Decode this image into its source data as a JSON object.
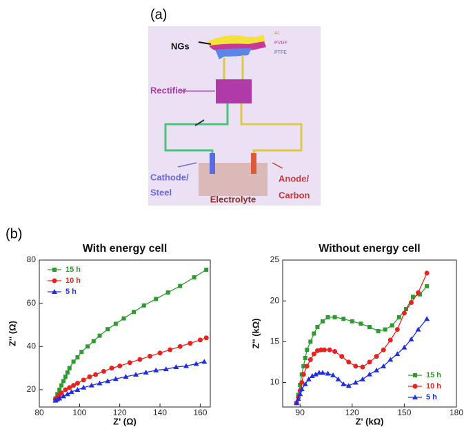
{
  "panel_labels": [
    "(a)",
    "(b)"
  ],
  "diagram": {
    "ngs": "NGs",
    "al": "Al",
    "pvdf": "PVDF",
    "ptfe": "PTFE",
    "rectifier": "Rectifier",
    "cathode": "Cathode/",
    "steel": "Steel",
    "anode": "Anode/",
    "carbon": "Carbon",
    "electrolyte": "Electrolyte"
  },
  "chart_data": [
    {
      "type": "line",
      "title": "With energy cell",
      "x_label": "Z' (Ω)",
      "y_label": "Z'' (Ω)",
      "xlim": [
        80,
        165
      ],
      "xticks": [
        80,
        100,
        120,
        140,
        160
      ],
      "ylim": [
        12,
        80
      ],
      "yticks": [
        20,
        40,
        60,
        80
      ],
      "legend": "upper left",
      "series": [
        {
          "name": "15 h",
          "color": "#2e9b2e",
          "marker": "square",
          "x": [
            88,
            89,
            90,
            91,
            92,
            93,
            94,
            95,
            97,
            99,
            101,
            104,
            107,
            110,
            114,
            118,
            122,
            127,
            132,
            138,
            144,
            150,
            157,
            163
          ],
          "values": [
            16,
            18,
            20,
            22,
            24,
            26,
            28,
            30,
            33,
            35,
            37.5,
            40,
            42.5,
            45,
            48,
            50.5,
            53,
            56,
            59,
            62,
            65,
            68,
            72,
            75.5
          ]
        },
        {
          "name": "10 h",
          "color": "#e8231f",
          "marker": "circle",
          "x": [
            88,
            89,
            90,
            91,
            93,
            95,
            97,
            99,
            102,
            105,
            108,
            112,
            116,
            120,
            125,
            130,
            135,
            140,
            145,
            150,
            155,
            160,
            163
          ],
          "values": [
            15.5,
            16.5,
            17.5,
            18.5,
            20,
            21,
            22,
            23,
            24.5,
            26,
            27,
            28.5,
            30,
            31,
            32.5,
            34,
            35.5,
            37,
            38.5,
            40,
            41.5,
            43,
            44
          ]
        },
        {
          "name": "5 h",
          "color": "#1f2fe0",
          "marker": "triangle",
          "x": [
            88,
            89,
            90,
            92,
            94,
            96,
            99,
            102,
            106,
            110,
            114,
            118,
            123,
            128,
            133,
            138,
            143,
            148,
            153,
            158,
            162
          ],
          "values": [
            15,
            15.5,
            16,
            17,
            18,
            19,
            20,
            21,
            22,
            23,
            24,
            25,
            26,
            27,
            28,
            29,
            29.5,
            30.5,
            31,
            32,
            33
          ]
        }
      ]
    },
    {
      "type": "line",
      "title": "Without energy cell",
      "x_label": "Z' (kΩ)",
      "y_label": "Z'' (kΩ)",
      "xlim": [
        80,
        180
      ],
      "xticks": [
        90,
        120,
        150,
        180
      ],
      "ylim": [
        7,
        25
      ],
      "yticks": [
        10,
        15,
        20,
        25
      ],
      "legend": "lower right",
      "series": [
        {
          "name": "15 h",
          "color": "#2e9b2e",
          "marker": "square",
          "x": [
            88,
            89,
            90,
            91,
            92,
            93,
            94,
            96,
            98,
            100,
            103,
            106,
            110,
            115,
            120,
            125,
            130,
            135,
            139,
            143,
            147,
            151,
            155,
            159,
            163
          ],
          "values": [
            7.5,
            8.5,
            9.7,
            11,
            12,
            13,
            14,
            15,
            16,
            16.8,
            17.5,
            18,
            18,
            17.8,
            17.5,
            17.2,
            16.8,
            16.3,
            16.5,
            17,
            18,
            19,
            20.5,
            20.8,
            21.8
          ]
        },
        {
          "name": "10 h",
          "color": "#e8231f",
          "marker": "circle",
          "x": [
            88,
            89,
            90,
            91,
            92,
            94,
            96,
            98,
            100,
            102,
            104,
            107,
            110,
            114,
            118,
            122,
            126,
            130,
            134,
            138,
            142,
            146,
            150,
            154,
            158,
            163
          ],
          "values": [
            7.5,
            8.2,
            9,
            10,
            11,
            12,
            12.8,
            13.5,
            13.9,
            14,
            14,
            14,
            13.8,
            13.2,
            12.5,
            12,
            11.9,
            12.5,
            13.2,
            14,
            15.2,
            16.5,
            18.5,
            19.8,
            21,
            23.4
          ]
        },
        {
          "name": "5 h",
          "color": "#1f2fe0",
          "marker": "triangle",
          "x": [
            88,
            89,
            90,
            91,
            93,
            95,
            97,
            99,
            101,
            103,
            106,
            109,
            112,
            115,
            118,
            122,
            126,
            130,
            134,
            138,
            142,
            146,
            150,
            154,
            158,
            163
          ],
          "values": [
            7.5,
            8,
            8.6,
            9.2,
            9.8,
            10.4,
            10.8,
            11,
            11.2,
            11.2,
            11.1,
            10.9,
            10.4,
            9.8,
            9.6,
            10,
            10.4,
            11,
            11.5,
            12,
            12.8,
            13.5,
            14.3,
            15.3,
            16.5,
            17.8
          ]
        }
      ]
    }
  ]
}
